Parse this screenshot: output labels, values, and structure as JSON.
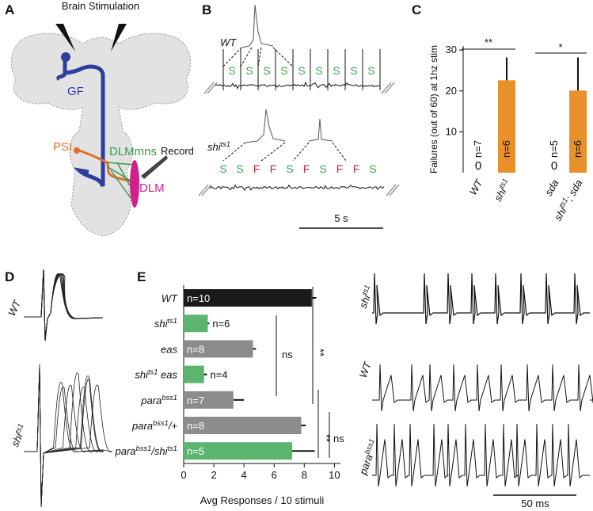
{
  "panels": {
    "a": {
      "label": "A",
      "title": "Brain Stimulation",
      "gf": "GF",
      "psi": "PSI",
      "dlmmns": "DLMmns",
      "record": "Record",
      "dlm": "DLM"
    },
    "b": {
      "label": "B",
      "wt": [
        "WT"
      ],
      "shi": [
        "shi",
        "ts1"
      ],
      "wt_labels": [
        "S",
        "S",
        "S",
        "S",
        "S",
        "S",
        "S",
        "S",
        "S"
      ],
      "shi_labels": [
        "S",
        "S",
        "F",
        "F",
        "S",
        "F",
        "S",
        "F",
        "F",
        "S"
      ],
      "scale": "5 s"
    },
    "c": {
      "label": "C"
    },
    "d": {
      "label": "D",
      "wt": [
        "WT"
      ],
      "shi": [
        "shi",
        "ts1"
      ]
    },
    "e": {
      "label": "E"
    },
    "traces": {
      "shi": [
        "shi",
        "ts1"
      ],
      "wt": [
        "WT"
      ],
      "para": [
        "para",
        "bss1"
      ],
      "scale": "50 ms"
    }
  },
  "chart_data": [
    {
      "type": "bar",
      "y_label": "Failures (out of 60) at 1hz stim",
      "categories": [
        [
          "WT"
        ],
        [
          "shi",
          "ts1"
        ],
        [
          "sda"
        ],
        [
          "shi",
          "ts1",
          "; sda"
        ]
      ],
      "values": [
        0,
        22.6,
        0,
        20.1
      ],
      "errors": [
        0,
        5.6,
        0,
        8.1
      ],
      "value_labels": [
        "0",
        null,
        "0",
        null
      ],
      "n_labels": [
        "n=7",
        "n=6",
        "n=5",
        "n=6"
      ],
      "color": "#e8902a",
      "ylim": [
        0,
        31
      ],
      "yticks": [
        10,
        20,
        30
      ],
      "significance": [
        "**",
        "*"
      ]
    },
    {
      "type": "barh",
      "x_label": "Avg Responses / 10 stimuli",
      "categories": [
        [
          "WT"
        ],
        [
          "shi",
          "ts1"
        ],
        [
          "eas"
        ],
        [
          "shi",
          "ts1",
          " eas"
        ],
        [
          "para",
          "bss1"
        ],
        [
          "para",
          "bss1",
          "/+"
        ],
        [
          "para",
          "bss1",
          "/shi",
          "ts1"
        ]
      ],
      "values": [
        8.5,
        1.6,
        4.6,
        1.35,
        3.3,
        7.8,
        7.2
      ],
      "errors": [
        0.3,
        0.1,
        0.2,
        0.2,
        0.7,
        0.3,
        1.5
      ],
      "n_labels": [
        "n=10",
        "n=6",
        "n=8",
        "n=4",
        "n=7",
        "n=8",
        "n=5"
      ],
      "colors": [
        "#1a1a1a",
        "#5cb56e",
        "#8c8c8c",
        "#5cb56e",
        "#8c8c8c",
        "#8c8c8c",
        "#5cb56e"
      ],
      "xlim": [
        0,
        10.4
      ],
      "xticks": [
        0,
        2,
        4,
        6,
        8,
        10
      ],
      "significance": [
        "ns",
        "**",
        "**",
        "ns"
      ]
    }
  ]
}
